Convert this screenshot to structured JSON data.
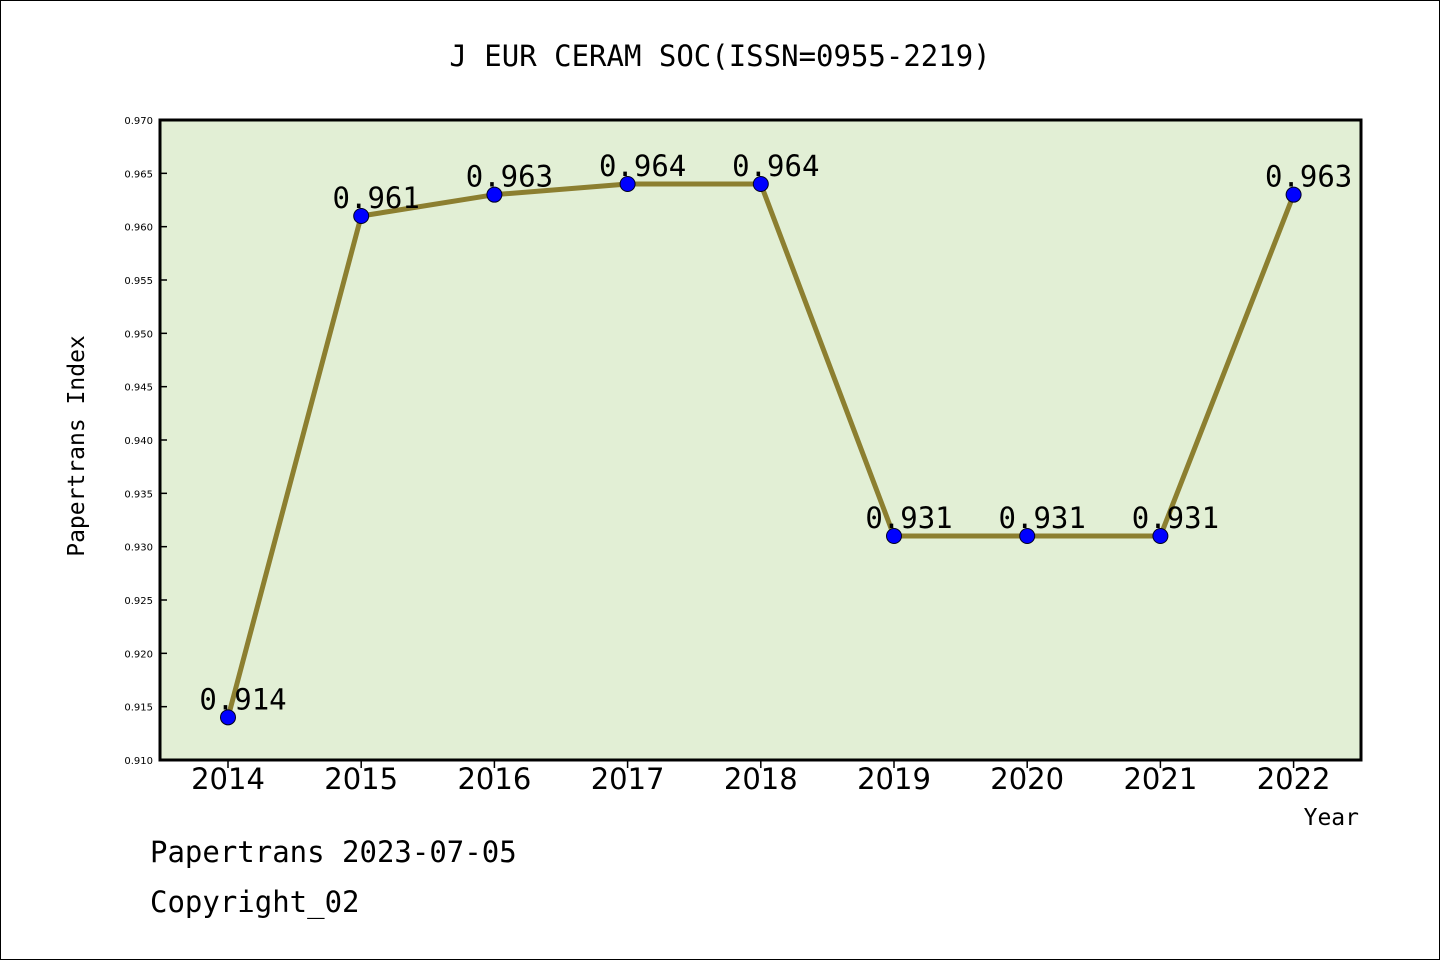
{
  "chart_data": {
    "type": "line",
    "title": "J EUR CERAM SOC(ISSN=0955-2219)",
    "xlabel": "Year",
    "ylabel": "Papertrans Index",
    "categories": [
      "2014",
      "2015",
      "2016",
      "2017",
      "2018",
      "2019",
      "2020",
      "2021",
      "2022"
    ],
    "series": [
      {
        "values": [
          0.914,
          0.961,
          0.963,
          0.964,
          0.964,
          0.931,
          0.931,
          0.931,
          0.963
        ],
        "data_labels": [
          "0.914",
          "0.961",
          "0.963",
          "0.964",
          "0.964",
          "0.931",
          "0.931",
          "0.931",
          "0.963"
        ]
      }
    ],
    "ylim": [
      0.91,
      0.97
    ],
    "yticks": [
      "0.910",
      "0.915",
      "0.920",
      "0.925",
      "0.930",
      "0.935",
      "0.940",
      "0.945",
      "0.950",
      "0.955",
      "0.960",
      "0.965",
      "0.970"
    ],
    "grid": false,
    "colors": {
      "plot_background": "#e2efd5",
      "line": "#8c7f30",
      "marker": "#0000ff"
    }
  },
  "footer": {
    "line1": "Papertrans 2023-07-05",
    "line2": "Copyright_02"
  }
}
